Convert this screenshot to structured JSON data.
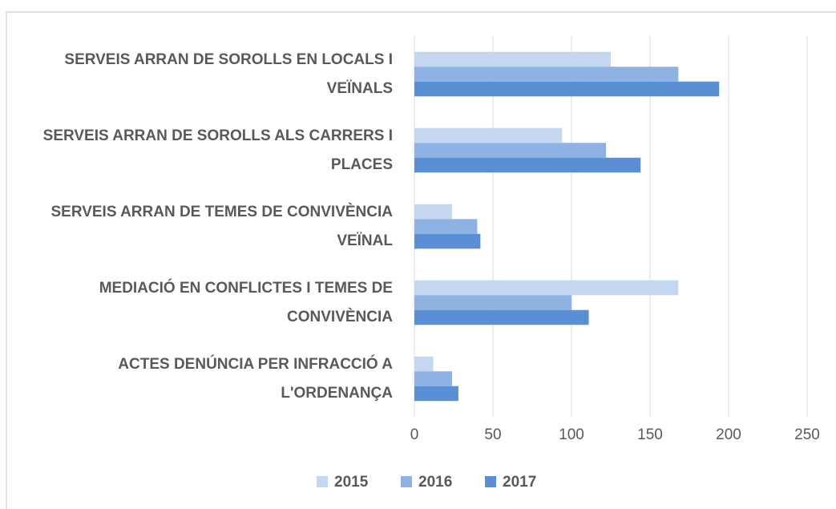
{
  "chart_data": {
    "type": "barh",
    "categories": [
      "SERVEIS ARRAN DE SOROLLS EN LOCALS I VEÏNALS",
      "SERVEIS ARRAN DE SOROLLS ALS CARRERS I PLACES",
      "SERVEIS ARRAN DE TEMES DE CONVIVÈNCIA VEÏNAL",
      "MEDIACIÓ EN CONFLICTES I TEMES DE CONVIVÈNCIA",
      "ACTES DENÚNCIA PER INFRACCIÓ A L'ORDENANÇA"
    ],
    "series": [
      {
        "name": "2015",
        "color": "#c5d7f0",
        "values": [
          125,
          94,
          24,
          168,
          12
        ]
      },
      {
        "name": "2016",
        "color": "#8db2e3",
        "values": [
          168,
          122,
          40,
          100,
          24
        ]
      },
      {
        "name": "2017",
        "color": "#5a8fd6",
        "values": [
          194,
          144,
          42,
          111,
          28
        ]
      }
    ],
    "xlim": [
      0,
      250
    ],
    "xticks": [
      0,
      50,
      100,
      150,
      200,
      250
    ],
    "grid": true,
    "legend": "bottom"
  }
}
